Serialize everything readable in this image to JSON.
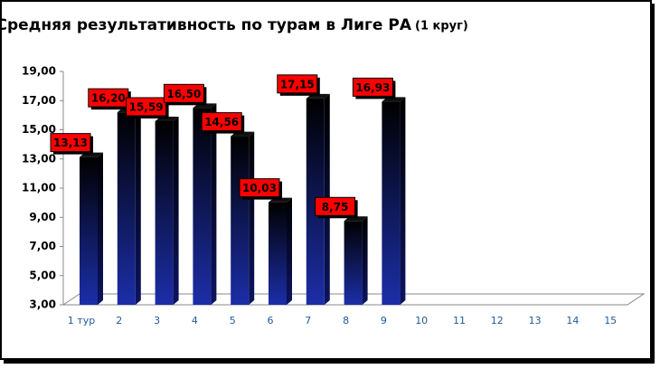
{
  "chart_data": {
    "type": "bar",
    "title": "Средняя результативность по турам в Лиге РА",
    "subtitle": "(1 круг)",
    "categories": [
      "1 тур",
      "2",
      "3",
      "4",
      "5",
      "6",
      "7",
      "8",
      "9",
      "10",
      "11",
      "12",
      "13",
      "14",
      "15"
    ],
    "values": [
      13.13,
      16.2,
      15.59,
      16.5,
      14.56,
      10.03,
      17.15,
      8.75,
      16.93,
      null,
      null,
      null,
      null,
      null,
      null
    ],
    "value_labels": [
      "13,13",
      "16,20",
      "15,59",
      "16,50",
      "14,56",
      "10,03",
      "17,15",
      "8,75",
      "16,93",
      null,
      null,
      null,
      null,
      null,
      null
    ],
    "color": "#1c2ea8",
    "label_color": "#ff0000",
    "ylim": [
      3,
      19
    ],
    "yticks": [
      {
        "value": 3,
        "label": "3,00"
      },
      {
        "value": 5,
        "label": "5,00"
      },
      {
        "value": 7,
        "label": "7,00"
      },
      {
        "value": 9,
        "label": "9,00"
      },
      {
        "value": 11,
        "label": "11,00"
      },
      {
        "value": 13,
        "label": "13,00"
      },
      {
        "value": 15,
        "label": "15,00"
      },
      {
        "value": 17,
        "label": "17,00"
      },
      {
        "value": 19,
        "label": "19,00"
      }
    ],
    "grid": false
  }
}
